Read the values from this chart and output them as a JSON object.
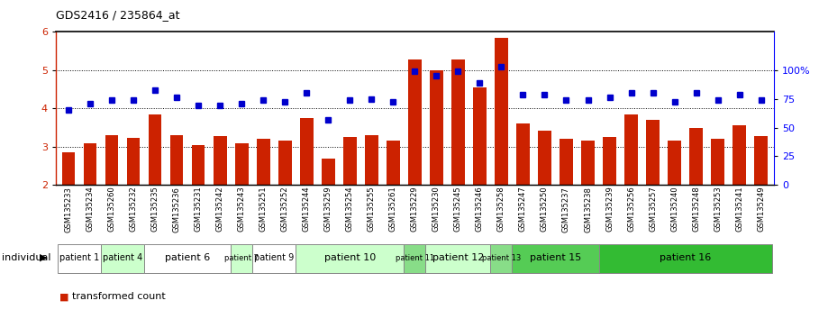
{
  "title": "GDS2416 / 235864_at",
  "samples": [
    "GSM135233",
    "GSM135234",
    "GSM135260",
    "GSM135232",
    "GSM135235",
    "GSM135236",
    "GSM135231",
    "GSM135242",
    "GSM135243",
    "GSM135251",
    "GSM135252",
    "GSM135244",
    "GSM135259",
    "GSM135254",
    "GSM135255",
    "GSM135261",
    "GSM135229",
    "GSM135230",
    "GSM135245",
    "GSM135246",
    "GSM135258",
    "GSM135247",
    "GSM135250",
    "GSM135237",
    "GSM135238",
    "GSM135239",
    "GSM135256",
    "GSM135257",
    "GSM135240",
    "GSM135248",
    "GSM135253",
    "GSM135241",
    "GSM135249"
  ],
  "bar_values": [
    2.85,
    3.1,
    3.3,
    3.22,
    3.85,
    3.3,
    3.05,
    3.28,
    3.1,
    3.2,
    3.15,
    3.75,
    2.7,
    3.25,
    3.3,
    3.15,
    5.28,
    5.0,
    5.28,
    4.55,
    5.85,
    3.6,
    3.42,
    3.2,
    3.15,
    3.25,
    3.85,
    3.7,
    3.15,
    3.5,
    3.2,
    3.55,
    3.28
  ],
  "dot_values": [
    3.97,
    4.13,
    4.22,
    4.22,
    4.47,
    4.3,
    4.07,
    4.08,
    4.12,
    4.22,
    4.17,
    4.4,
    3.7,
    4.22,
    4.25,
    4.17,
    4.97,
    4.85,
    4.97,
    4.67,
    5.1,
    4.37,
    4.37,
    4.22,
    4.22,
    4.3,
    4.42,
    4.42,
    4.17,
    4.42,
    4.22,
    4.37,
    4.22
  ],
  "bar_color": "#cc2200",
  "dot_color": "#0000cc",
  "patients": [
    {
      "label": "patient 1",
      "start": 0,
      "end": 2,
      "color": "#ffffff"
    },
    {
      "label": "patient 4",
      "start": 2,
      "end": 4,
      "color": "#ccffcc"
    },
    {
      "label": "patient 6",
      "start": 4,
      "end": 8,
      "color": "#ffffff"
    },
    {
      "label": "patient 7",
      "start": 8,
      "end": 9,
      "color": "#ccffcc"
    },
    {
      "label": "patient 9",
      "start": 9,
      "end": 11,
      "color": "#ffffff"
    },
    {
      "label": "patient 10",
      "start": 11,
      "end": 16,
      "color": "#ccffcc"
    },
    {
      "label": "patient 11",
      "start": 16,
      "end": 17,
      "color": "#88dd88"
    },
    {
      "label": "patient 12",
      "start": 17,
      "end": 20,
      "color": "#ccffcc"
    },
    {
      "label": "patient 13",
      "start": 20,
      "end": 21,
      "color": "#88dd88"
    },
    {
      "label": "patient 15",
      "start": 21,
      "end": 25,
      "color": "#55cc55"
    },
    {
      "label": "patient 16",
      "start": 25,
      "end": 33,
      "color": "#33bb33"
    }
  ],
  "ylim": [
    2.0,
    6.0
  ],
  "yticks_left": [
    2,
    3,
    4,
    5,
    6
  ],
  "yticks_right_labels": [
    "0",
    "25",
    "50",
    "75",
    "100%"
  ],
  "yticks_right_vals": [
    2.0,
    2.75,
    3.5,
    4.25,
    5.0
  ],
  "dotted_lines": [
    3.0,
    4.0,
    5.0
  ],
  "bar_bottom": 2.0
}
